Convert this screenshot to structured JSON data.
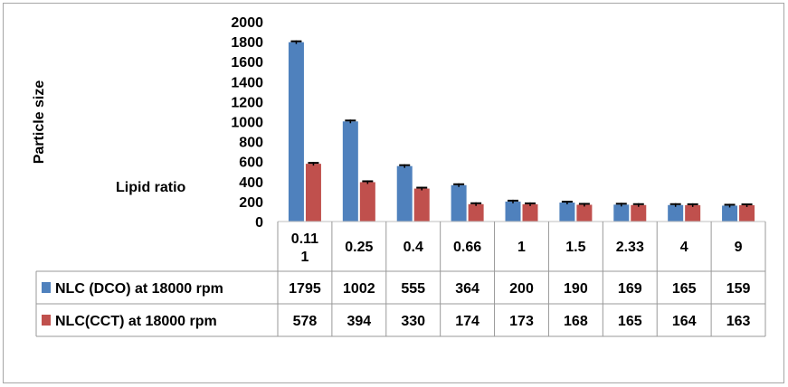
{
  "chart_data": {
    "type": "bar",
    "title": "",
    "ylabel": "Particle size",
    "xlabel": "Lipid ratio",
    "ylim": [
      0,
      2000
    ],
    "yticks": [
      0,
      200,
      400,
      600,
      800,
      1000,
      1200,
      1400,
      1600,
      1800,
      2000
    ],
    "categories": [
      "0.11\n1",
      "0.25",
      "0.4",
      "0.66",
      "1",
      "1.5",
      "2.33",
      "4",
      "9"
    ],
    "series": [
      {
        "name": "NLC (DCO) at 18000 rpm",
        "color": "#4f81bd",
        "values": [
          1795,
          1002,
          555,
          364,
          200,
          190,
          169,
          165,
          159
        ]
      },
      {
        "name": "NLC(CCT) at 18000 rpm",
        "color": "#c0504d",
        "values": [
          578,
          394,
          330,
          174,
          173,
          168,
          165,
          164,
          163
        ]
      }
    ],
    "error_bars": true,
    "grid": false,
    "legend": "data-table"
  }
}
